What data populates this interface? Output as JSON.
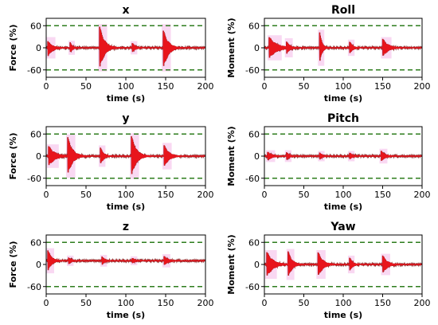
{
  "chart_data": [
    {
      "type": "line",
      "title": "x",
      "xlabel": "time (s)",
      "ylabel": "Force (%)",
      "xlim": [
        0,
        200
      ],
      "ylim": [
        -80,
        80
      ],
      "xticks": [
        "0",
        "50",
        "100",
        "150",
        "200"
      ],
      "yticks": [
        "60",
        "0",
        "-60"
      ],
      "threshold_lines": [
        60,
        -60
      ],
      "events": [
        {
          "t": 2,
          "amp": 22,
          "bias": -3,
          "decay": 6
        },
        {
          "t": 30,
          "amp": 15,
          "bias": 0,
          "decay": 3
        },
        {
          "t": 67,
          "amp": 60,
          "bias": 0,
          "decay": 6
        },
        {
          "t": 108,
          "amp": 14,
          "bias": 0,
          "decay": 4
        },
        {
          "t": 147,
          "amp": 55,
          "bias": -5,
          "decay": 6
        }
      ]
    },
    {
      "type": "line",
      "title": "Roll",
      "xlabel": "time (s)",
      "ylabel": "Moment (%)",
      "xlim": [
        0,
        200
      ],
      "ylim": [
        -80,
        80
      ],
      "xticks": [
        "0",
        "50",
        "100",
        "150",
        "200"
      ],
      "yticks": [
        "60",
        "0",
        "-60"
      ],
      "threshold_lines": [
        60,
        -60
      ],
      "events": [
        {
          "t": 6,
          "amp": 30,
          "bias": 0,
          "decay": 10
        },
        {
          "t": 28,
          "amp": 22,
          "bias": 0,
          "decay": 5
        },
        {
          "t": 70,
          "amp": 45,
          "bias": 0,
          "decay": 3
        },
        {
          "t": 108,
          "amp": 18,
          "bias": 0,
          "decay": 4
        },
        {
          "t": 150,
          "amp": 25,
          "bias": 0,
          "decay": 7
        }
      ]
    },
    {
      "type": "line",
      "title": "y",
      "xlabel": "time (s)",
      "ylabel": "Force (%)",
      "xlim": [
        0,
        200
      ],
      "ylim": [
        -80,
        80
      ],
      "xticks": [
        "0",
        "50",
        "100",
        "150",
        "200"
      ],
      "yticks": [
        "60",
        "0",
        "-60"
      ],
      "threshold_lines": [
        60,
        -60
      ],
      "events": [
        {
          "t": 3,
          "amp": 28,
          "bias": 0,
          "decay": 8
        },
        {
          "t": 27,
          "amp": 55,
          "bias": 0,
          "decay": 6
        },
        {
          "t": 68,
          "amp": 25,
          "bias": 0,
          "decay": 4
        },
        {
          "t": 107,
          "amp": 58,
          "bias": 0,
          "decay": 6
        },
        {
          "t": 148,
          "amp": 32,
          "bias": 0,
          "decay": 6
        }
      ]
    },
    {
      "type": "line",
      "title": "Pitch",
      "xlabel": "time (s)",
      "ylabel": "Moment (%)",
      "xlim": [
        0,
        200
      ],
      "ylim": [
        -80,
        80
      ],
      "xticks": [
        "0",
        "50",
        "100",
        "150",
        "200"
      ],
      "yticks": [
        "60",
        "0",
        "-60"
      ],
      "threshold_lines": [
        60,
        -60
      ],
      "events": [
        {
          "t": 4,
          "amp": 12,
          "bias": 0,
          "decay": 6
        },
        {
          "t": 28,
          "amp": 12,
          "bias": 0,
          "decay": 4
        },
        {
          "t": 70,
          "amp": 10,
          "bias": 0,
          "decay": 4
        },
        {
          "t": 108,
          "amp": 10,
          "bias": 0,
          "decay": 4
        },
        {
          "t": 148,
          "amp": 16,
          "bias": 0,
          "decay": 5
        }
      ]
    },
    {
      "type": "line",
      "title": "z",
      "xlabel": "time (s)",
      "ylabel": "Force (%)",
      "xlim": [
        0,
        200
      ],
      "ylim": [
        -80,
        80
      ],
      "xticks": [
        "0",
        "50",
        "100",
        "150",
        "200"
      ],
      "yticks": [
        "60",
        "0",
        "-60"
      ],
      "threshold_lines": [
        60,
        -60
      ],
      "baseline": 10,
      "events": [
        {
          "t": 2,
          "amp": 30,
          "bias": 0,
          "decay": 5
        },
        {
          "t": 28,
          "amp": 10,
          "bias": 0,
          "decay": 4
        },
        {
          "t": 70,
          "amp": 12,
          "bias": 0,
          "decay": 4
        },
        {
          "t": 108,
          "amp": 8,
          "bias": 0,
          "decay": 4
        },
        {
          "t": 148,
          "amp": 14,
          "bias": 0,
          "decay": 5
        }
      ]
    },
    {
      "type": "line",
      "title": "Yaw",
      "xlabel": "time (s)",
      "ylabel": "Moment (%)",
      "xlim": [
        0,
        200
      ],
      "ylim": [
        -80,
        80
      ],
      "xticks": [
        "0",
        "50",
        "100",
        "150",
        "200"
      ],
      "yticks": [
        "60",
        "0",
        "-60"
      ],
      "threshold_lines": [
        60,
        -60
      ],
      "events": [
        {
          "t": 3,
          "amp": 35,
          "bias": 0,
          "decay": 8
        },
        {
          "t": 30,
          "amp": 38,
          "bias": 0,
          "decay": 5
        },
        {
          "t": 68,
          "amp": 35,
          "bias": 0,
          "decay": 6
        },
        {
          "t": 108,
          "amp": 20,
          "bias": 0,
          "decay": 4
        },
        {
          "t": 150,
          "amp": 25,
          "bias": 0,
          "decay": 6
        }
      ]
    }
  ],
  "colors": {
    "signal": "#e8141c",
    "envelope": "#6b0f10",
    "highlight": "#f4b8e8",
    "threshold": "#2e7d1e",
    "axis": "#000000"
  }
}
